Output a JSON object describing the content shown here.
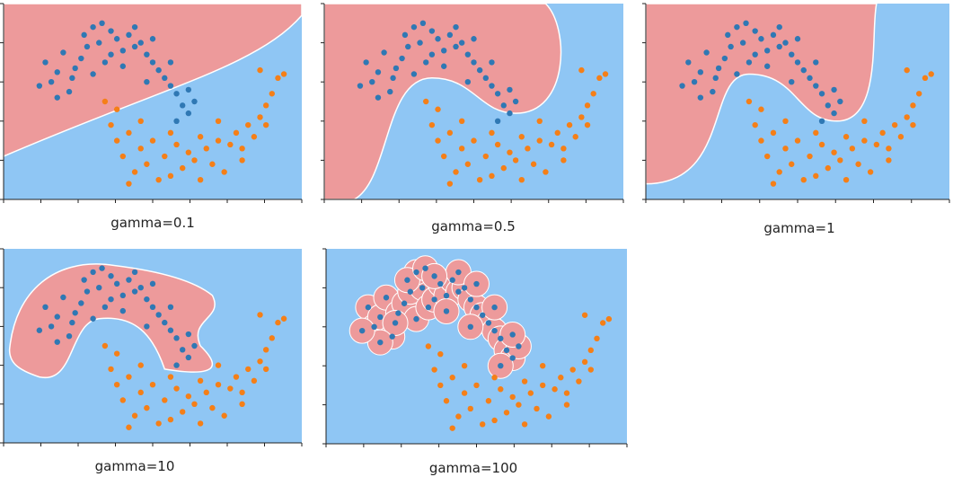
{
  "colors": {
    "region_blue": "#8fc6f4",
    "region_red": "#ed9a9b",
    "point_blue": "#2f78b4",
    "point_orange": "#f57f17",
    "axis": "#222222",
    "boundary": "#ffffff"
  },
  "chart_data": [
    {
      "type": "scatter",
      "title": "gamma=0.1",
      "classifier_region": "red region above a nearly linear boundary rising left to right",
      "series": [
        {
          "name": "",
          "color": "#2f78b4"
        },
        {
          "name": "",
          "color": "#f57f17"
        }
      ]
    },
    {
      "type": "scatter",
      "title": "gamma=0.5",
      "classifier_region": "red region covering upper-left, curving around the upper moon",
      "series": [
        {
          "name": "",
          "color": "#2f78b4"
        },
        {
          "name": "",
          "color": "#f57f17"
        }
      ]
    },
    {
      "type": "scatter",
      "title": "gamma=1",
      "classifier_region": "red region wrapping the upper moon with a notch over the orange cluster",
      "series": [
        {
          "name": "",
          "color": "#2f78b4"
        },
        {
          "name": "",
          "color": "#f57f17"
        }
      ]
    },
    {
      "type": "scatter",
      "title": "gamma=10",
      "classifier_region": "red island hugging the upper moon",
      "series": [
        {
          "name": "",
          "color": "#2f78b4"
        },
        {
          "name": "",
          "color": "#f57f17"
        }
      ]
    },
    {
      "type": "scatter",
      "title": "gamma=100",
      "classifier_region": "small red blobs around each blue point",
      "series": [
        {
          "name": "",
          "color": "#2f78b4"
        },
        {
          "name": "",
          "color": "#f57f17"
        }
      ]
    }
  ],
  "points": {
    "blue": [
      [
        0.14,
        0.3
      ],
      [
        0.16,
        0.4
      ],
      [
        0.18,
        0.35
      ],
      [
        0.2,
        0.25
      ],
      [
        0.22,
        0.45
      ],
      [
        0.24,
        0.33
      ],
      [
        0.26,
        0.28
      ],
      [
        0.28,
        0.22
      ],
      [
        0.3,
        0.36
      ],
      [
        0.32,
        0.2
      ],
      [
        0.34,
        0.3
      ],
      [
        0.36,
        0.26
      ],
      [
        0.38,
        0.18
      ],
      [
        0.4,
        0.24
      ],
      [
        0.42,
        0.16
      ],
      [
        0.44,
        0.22
      ],
      [
        0.46,
        0.2
      ],
      [
        0.48,
        0.26
      ],
      [
        0.5,
        0.3
      ],
      [
        0.52,
        0.34
      ],
      [
        0.54,
        0.38
      ],
      [
        0.56,
        0.42
      ],
      [
        0.58,
        0.46
      ],
      [
        0.6,
        0.52
      ],
      [
        0.62,
        0.56
      ],
      [
        0.64,
        0.5
      ],
      [
        0.3,
        0.12
      ],
      [
        0.27,
        0.16
      ],
      [
        0.33,
        0.1
      ],
      [
        0.44,
        0.12
      ],
      [
        0.5,
        0.18
      ],
      [
        0.56,
        0.3
      ],
      [
        0.4,
        0.32
      ],
      [
        0.23,
        0.38
      ],
      [
        0.18,
        0.48
      ],
      [
        0.12,
        0.42
      ],
      [
        0.36,
        0.14
      ],
      [
        0.48,
        0.4
      ],
      [
        0.58,
        0.6
      ],
      [
        0.62,
        0.44
      ]
    ],
    "orange": [
      [
        0.34,
        0.5
      ],
      [
        0.36,
        0.62
      ],
      [
        0.38,
        0.7
      ],
      [
        0.4,
        0.78
      ],
      [
        0.42,
        0.66
      ],
      [
        0.44,
        0.86
      ],
      [
        0.46,
        0.74
      ],
      [
        0.48,
        0.82
      ],
      [
        0.5,
        0.7
      ],
      [
        0.52,
        0.9
      ],
      [
        0.54,
        0.78
      ],
      [
        0.56,
        0.88
      ],
      [
        0.58,
        0.72
      ],
      [
        0.6,
        0.84
      ],
      [
        0.62,
        0.76
      ],
      [
        0.64,
        0.8
      ],
      [
        0.66,
        0.68
      ],
      [
        0.68,
        0.74
      ],
      [
        0.7,
        0.82
      ],
      [
        0.72,
        0.7
      ],
      [
        0.74,
        0.86
      ],
      [
        0.76,
        0.72
      ],
      [
        0.78,
        0.66
      ],
      [
        0.8,
        0.74
      ],
      [
        0.82,
        0.62
      ],
      [
        0.84,
        0.68
      ],
      [
        0.86,
        0.58
      ],
      [
        0.88,
        0.52
      ],
      [
        0.9,
        0.46
      ],
      [
        0.92,
        0.38
      ],
      [
        0.88,
        0.62
      ],
      [
        0.94,
        0.36
      ],
      [
        0.38,
        0.54
      ],
      [
        0.46,
        0.6
      ],
      [
        0.56,
        0.66
      ],
      [
        0.72,
        0.6
      ],
      [
        0.8,
        0.8
      ],
      [
        0.66,
        0.9
      ],
      [
        0.42,
        0.92
      ],
      [
        0.86,
        0.34
      ]
    ]
  }
}
